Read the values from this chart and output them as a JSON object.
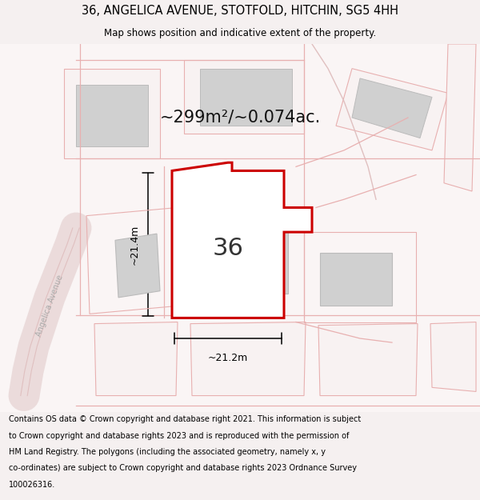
{
  "title_line1": "36, ANGELICA AVENUE, STOTFOLD, HITCHIN, SG5 4HH",
  "title_line2": "Map shows position and indicative extent of the property.",
  "area_label": "~299m²/~0.074ac.",
  "plot_number": "36",
  "dim_vertical": "~21.4m",
  "dim_horizontal": "~21.2m",
  "footer_lines": [
    "Contains OS data © Crown copyright and database right 2021. This information is subject",
    "to Crown copyright and database rights 2023 and is reproduced with the permission of",
    "HM Land Registry. The polygons (including the associated geometry, namely x, y",
    "co-ordinates) are subject to Crown copyright and database rights 2023 Ordnance Survey",
    "100026316."
  ],
  "bg_color": "#f5f0f0",
  "map_bg": "#ffffff",
  "outline_color": "#e8b0b0",
  "plot_red": "#cc0000",
  "building_fill": "#d0d0d0",
  "building_edge": "#bbbbbb",
  "road_fill": "#f0e8e8",
  "road_edge": "#e0c0c0",
  "street_label": "Angelica Avenue"
}
